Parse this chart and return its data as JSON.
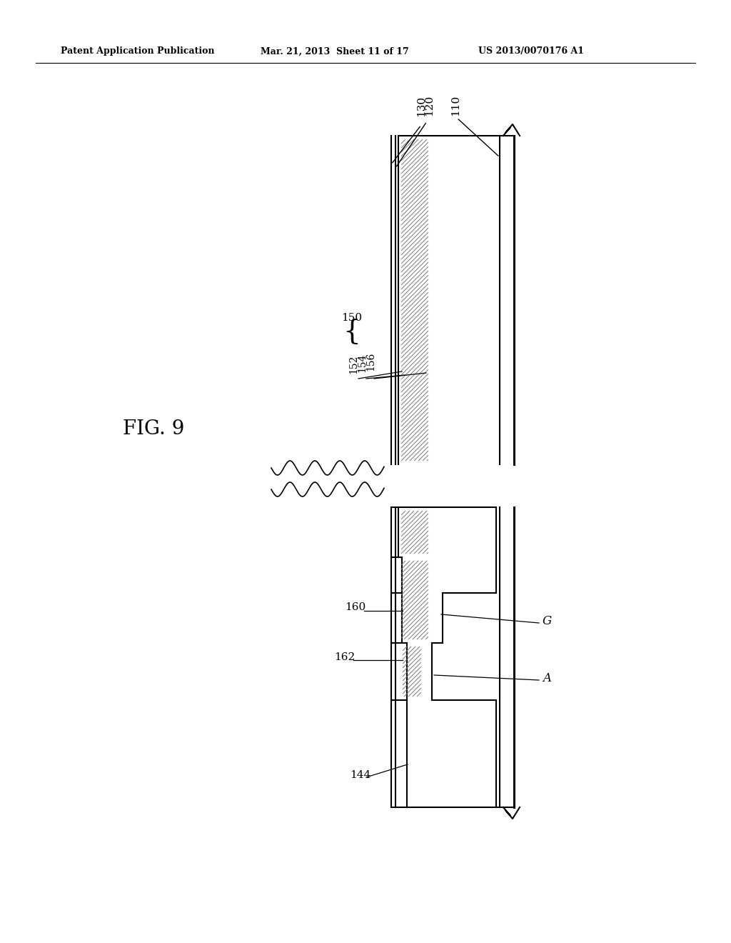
{
  "title": "",
  "header_left": "Patent Application Publication",
  "header_mid": "Mar. 21, 2013  Sheet 11 of 17",
  "header_right": "US 2013/0070176 A1",
  "fig_label": "FIG. 9",
  "background_color": "#ffffff",
  "line_color": "#000000",
  "hatch_color": "#555555"
}
